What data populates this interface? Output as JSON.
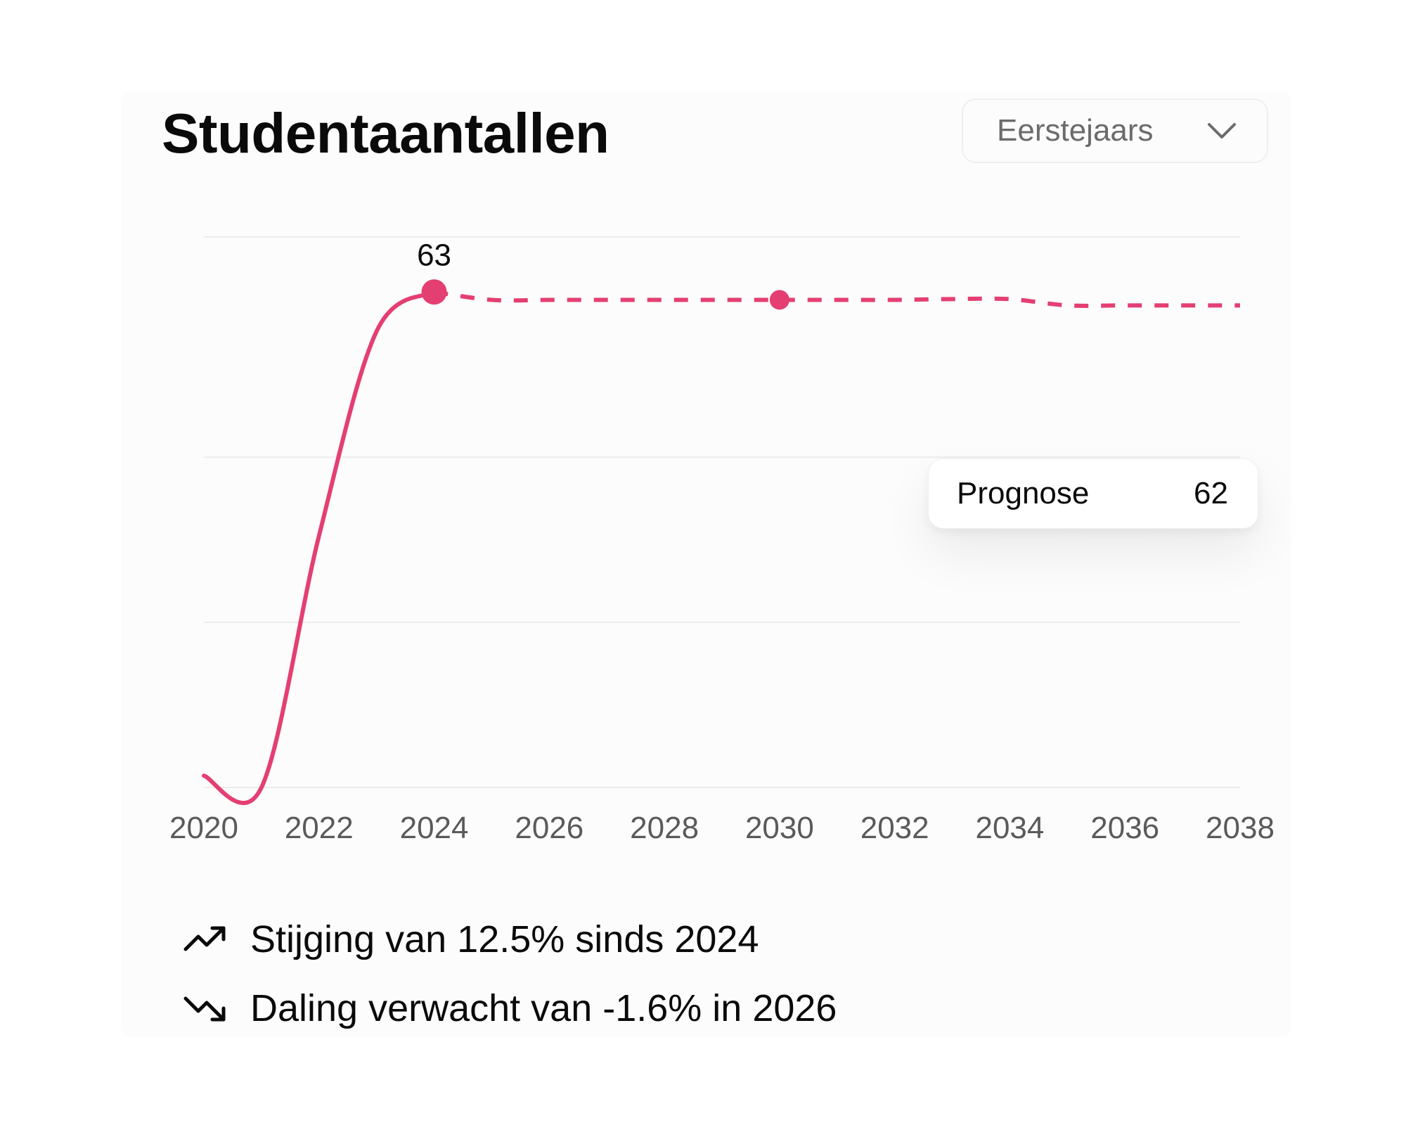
{
  "header": {
    "title": "Studentaantallen",
    "dropdown": {
      "selected": "Eerstejaars",
      "icon": "chevron-down-icon"
    }
  },
  "colors": {
    "line": "#e43f72",
    "grid": "#ececec",
    "tick_label": "#5a5a5a",
    "text": "#0a0a0a"
  },
  "tooltip": {
    "label": "Prognose",
    "value": "62"
  },
  "chart_data": {
    "type": "line",
    "title": "",
    "xlabel": "",
    "ylabel": "",
    "xlim": [
      2020,
      2038
    ],
    "ylim": [
      0,
      70
    ],
    "x_ticks": [
      "2020",
      "2022",
      "2024",
      "2026",
      "2028",
      "2030",
      "2032",
      "2034",
      "2036",
      "2038"
    ],
    "grid": "horizontal",
    "gridline_values": [
      0,
      21,
      42,
      70
    ],
    "series": [
      {
        "style": "solid",
        "x": [
          2020,
          2021,
          2022,
          2023,
          2024
        ],
        "y": [
          1.5,
          0,
          32,
          58,
          63
        ]
      },
      {
        "style": "dashed",
        "x": [
          2024,
          2025,
          2026,
          2027,
          2028,
          2029,
          2030,
          2031,
          2032,
          2033,
          2034,
          2035,
          2036,
          2037,
          2038
        ],
        "y": [
          63,
          62,
          62,
          62,
          62,
          62,
          62,
          62,
          62,
          62.1,
          62.1,
          61.3,
          61.3,
          61.3,
          61.3
        ]
      }
    ],
    "highlighted_points": [
      {
        "x": 2024,
        "y": 63,
        "label": "63"
      },
      {
        "x": 2030,
        "y": 62
      }
    ]
  },
  "insights": [
    {
      "icon": "trending-up-icon",
      "text": "Stijging van 12.5% sinds 2024"
    },
    {
      "icon": "trending-down-icon",
      "text": "Daling verwacht van -1.6% in 2026"
    }
  ]
}
